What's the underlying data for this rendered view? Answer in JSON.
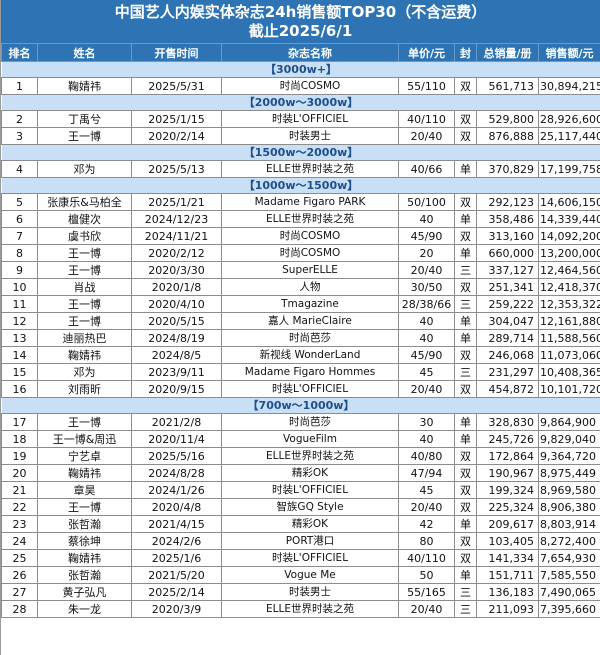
{
  "title": {
    "line1": "中国艺人内娱实体杂志24h销售额TOP30（不含运费）",
    "line2": "截止2025/6/1"
  },
  "columns": [
    "排名",
    "姓名",
    "开售时间",
    "杂志名称",
    "单价/元",
    "封",
    "总销量/册",
    "销售额/元"
  ],
  "groups": [
    {
      "tier": "【3000w+】",
      "rows": [
        [
          "1",
          "鞠婧祎",
          "2025/5/31",
          "时尚COSMO",
          "55/110",
          "双",
          "561,713",
          "30,894,215"
        ]
      ]
    },
    {
      "tier": "【2000w～3000w】",
      "rows": [
        [
          "2",
          "丁禹兮",
          "2025/1/15",
          "时装L'OFFICIEL",
          "40/110",
          "双",
          "529,800",
          "28,926,600"
        ],
        [
          "3",
          "王一博",
          "2020/2/14",
          "时装男士",
          "20/40",
          "双",
          "876,888",
          "25,117,440"
        ]
      ]
    },
    {
      "tier": "【1500w～2000w】",
      "rows": [
        [
          "4",
          "邓为",
          "2025/5/13",
          "ELLE世界时装之苑",
          "40/66",
          "单",
          "370,829",
          "17,199,758"
        ]
      ]
    },
    {
      "tier": "【1000w～1500w】",
      "rows": [
        [
          "5",
          "张康乐&马柏全",
          "2025/1/21",
          "Madame Figaro PARK",
          "50/100",
          "双",
          "292,123",
          "14,606,150"
        ],
        [
          "6",
          "檀健次",
          "2024/12/23",
          "ELLE世界时装之苑",
          "40",
          "单",
          "358,486",
          "14,339,440"
        ],
        [
          "7",
          "虞书欣",
          "2024/11/21",
          "时尚COSMO",
          "45/90",
          "双",
          "313,160",
          "14,092,200"
        ],
        [
          "8",
          "王一博",
          "2020/2/12",
          "时尚COSMO",
          "20",
          "单",
          "660,000",
          "13,200,000"
        ],
        [
          "9",
          "王一博",
          "2020/3/30",
          "SuperELLE",
          "20/40",
          "三",
          "337,127",
          "12,464,560"
        ],
        [
          "10",
          "肖战",
          "2020/1/8",
          "人物",
          "30/50",
          "双",
          "251,341",
          "12,418,370"
        ],
        [
          "11",
          "王一博",
          "2020/4/10",
          "Tmagazine",
          "28/38/66",
          "三",
          "259,222",
          "12,353,322"
        ],
        [
          "12",
          "王一博",
          "2020/5/15",
          "嘉人 MarieClaire",
          "40",
          "单",
          "304,047",
          "12,161,880"
        ],
        [
          "13",
          "迪丽热巴",
          "2024/8/19",
          "时尚芭莎",
          "40",
          "单",
          "289,714",
          "11,588,560"
        ],
        [
          "14",
          "鞠婧祎",
          "2024/8/5",
          "新视线 WonderLand",
          "45/90",
          "双",
          "246,068",
          "11,073,060"
        ],
        [
          "15",
          "邓为",
          "2023/9/11",
          "Madame Figaro Hommes",
          "45",
          "三",
          "231,297",
          "10,408,365"
        ],
        [
          "16",
          "刘雨昕",
          "2020/9/15",
          "时装L'OFFICIEL",
          "20/40",
          "双",
          "454,872",
          "10,101,720"
        ]
      ]
    },
    {
      "tier": "【700w～1000w】",
      "rows": [
        [
          "17",
          "王一博",
          "2021/2/8",
          "时尚芭莎",
          "30",
          "单",
          "328,830",
          "9,864,900"
        ],
        [
          "18",
          "王一博&周迅",
          "2020/11/4",
          "VogueFilm",
          "40",
          "单",
          "245,726",
          "9,829,040"
        ],
        [
          "19",
          "宁艺卓",
          "2025/5/16",
          "ELLE世界时装之苑",
          "40/80",
          "双",
          "172,864",
          "9,364,720"
        ],
        [
          "20",
          "鞠婧祎",
          "2024/8/28",
          "精彩OK",
          "47/94",
          "双",
          "190,967",
          "8,975,449"
        ],
        [
          "21",
          "章昊",
          "2024/1/26",
          "时装L'OFFICIEL",
          "45",
          "双",
          "199,324",
          "8,969,580"
        ],
        [
          "22",
          "王一博",
          "2020/4/8",
          "智族GQ Style",
          "20/40",
          "双",
          "225,324",
          "8,906,380"
        ],
        [
          "23",
          "张哲瀚",
          "2021/4/15",
          "精彩OK",
          "42",
          "单",
          "209,617",
          "8,803,914"
        ],
        [
          "24",
          "蔡徐坤",
          "2024/2/6",
          "PORT港口",
          "80",
          "双",
          "103,405",
          "8,272,400"
        ],
        [
          "25",
          "鞠婧祎",
          "2025/1/6",
          "时装L'OFFICIEL",
          "40/110",
          "双",
          "141,334",
          "7,654,930"
        ],
        [
          "26",
          "张哲瀚",
          "2021/5/20",
          "Vogue Me",
          "50",
          "单",
          "151,711",
          "7,585,550"
        ],
        [
          "27",
          "黄子弘凡",
          "2025/2/14",
          "时装男士",
          "55/165",
          "三",
          "136,183",
          "7,490,065"
        ],
        [
          "28",
          "朱一龙",
          "2020/3/9",
          "ELLE世界时装之苑",
          "20/40",
          "三",
          "211,093",
          "7,395,660"
        ]
      ]
    }
  ]
}
